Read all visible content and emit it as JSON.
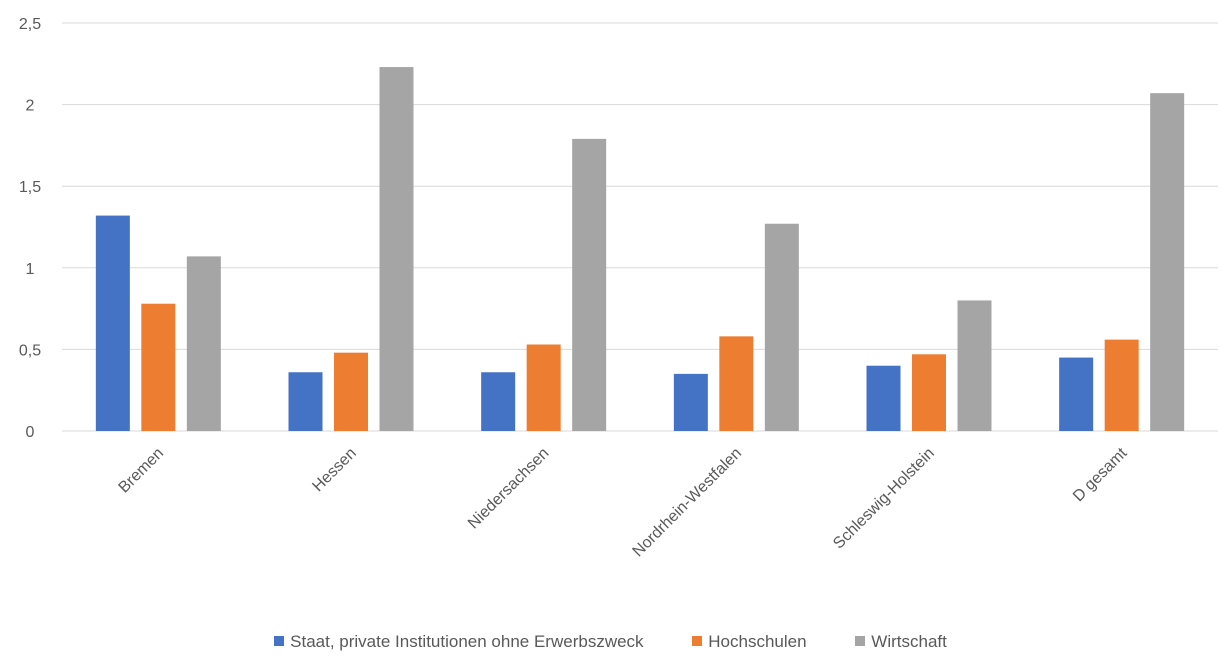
{
  "chart_data": {
    "type": "bar",
    "categories": [
      "Bremen",
      "Hessen",
      "Niedersachsen",
      "Nordrhein-Westfalen",
      "Schleswig-Holstein",
      "D gesamt"
    ],
    "series": [
      {
        "name": "Staat, private Institutionen ohne Erwerbszweck",
        "color": "#4472C4",
        "values": [
          1.32,
          0.36,
          0.36,
          0.35,
          0.4,
          0.45
        ]
      },
      {
        "name": "Hochschulen",
        "color": "#ED7D31",
        "values": [
          0.78,
          0.48,
          0.53,
          0.58,
          0.47,
          0.56
        ]
      },
      {
        "name": "Wirtschaft",
        "color": "#A5A5A5",
        "values": [
          1.07,
          2.23,
          1.79,
          1.27,
          0.8,
          2.07
        ]
      }
    ],
    "ylim": [
      0,
      2.5
    ],
    "yticks": [
      0,
      0.5,
      1,
      1.5,
      2,
      2.5
    ],
    "ytick_labels": [
      "0",
      "0,5",
      "1",
      "1,5",
      "2",
      "2,5"
    ],
    "grid": true,
    "legend_position": "bottom"
  }
}
